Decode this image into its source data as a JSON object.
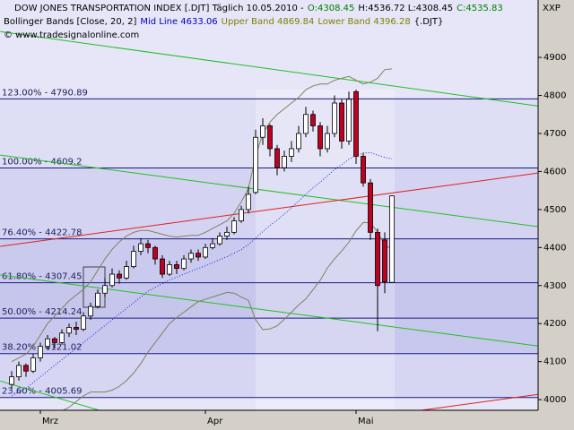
{
  "chart_data": {
    "type": "candlestick",
    "symbol": "XXP",
    "header": [
      [
        {
          "text": "DOW JONES TRANSPORTATION INDEX [.DJT]  Täglich 10.05.2010 -",
          "color": "#000000"
        },
        {
          "text": "O:4308.45",
          "color": "#008000"
        },
        {
          "text": "H:4536.72 L:4308.45",
          "color": "#000000"
        },
        {
          "text": "C:4535.83",
          "color": "#008000"
        }
      ],
      [
        {
          "text": "Bollinger Bands [Close, 20, 2]",
          "color": "#000000"
        },
        {
          "text": "Mid Line 4633.06",
          "color": "#0000c0"
        },
        {
          "text": "Upper Band 4869.84",
          "color": "#808000"
        },
        {
          "text": "Lower Band 4396.28",
          "color": "#808000"
        },
        {
          "text": "{.DJT}",
          "color": "#000000"
        }
      ],
      [
        {
          "text": "© www.tradesignalonline.com",
          "color": "#000000"
        }
      ]
    ],
    "categories": [
      null,
      null,
      null,
      null,
      "Mrz",
      null,
      null,
      null,
      null,
      null,
      null,
      null,
      null,
      null,
      null,
      null,
      null,
      null,
      null,
      null,
      null,
      null,
      null,
      null,
      null,
      null,
      null,
      "Apr",
      null,
      null,
      null,
      null,
      null,
      null,
      null,
      null,
      null,
      null,
      null,
      null,
      null,
      null,
      null,
      null,
      null,
      null,
      null,
      null,
      "Mai",
      null,
      null,
      null,
      null,
      null
    ],
    "open": [
      4040,
      4060,
      4090,
      4075,
      4110,
      4140,
      4160,
      4150,
      4175,
      4190,
      4185,
      4220,
      4245,
      4280,
      4300,
      4330,
      4320,
      4350,
      4390,
      4410,
      4400,
      4370,
      4330,
      4355,
      4345,
      4370,
      4385,
      4375,
      4400,
      4410,
      4430,
      4440,
      4470,
      4500,
      4545,
      4690,
      4720,
      4660,
      4610,
      4640,
      4660,
      4700,
      4750,
      4720,
      4660,
      4700,
      4780,
      4680,
      4810,
      4640,
      4570,
      4440,
      4420,
      4308.45
    ],
    "high": [
      4075,
      4100,
      4095,
      4120,
      4150,
      4170,
      4165,
      4185,
      4200,
      4205,
      4230,
      4255,
      4290,
      4320,
      4345,
      4340,
      4365,
      4405,
      4425,
      4420,
      4405,
      4380,
      4365,
      4365,
      4380,
      4395,
      4395,
      4410,
      4425,
      4440,
      4455,
      4480,
      4510,
      4560,
      4710,
      4740,
      4725,
      4670,
      4655,
      4680,
      4720,
      4770,
      4760,
      4730,
      4720,
      4800,
      4790,
      4810,
      4815,
      4650,
      4580,
      4450,
      4440,
      4536.72
    ],
    "low": [
      4030,
      4050,
      4060,
      4070,
      4100,
      4130,
      4135,
      4145,
      4165,
      4170,
      4180,
      4210,
      4240,
      4270,
      4295,
      4305,
      4315,
      4345,
      4380,
      4385,
      4355,
      4320,
      4325,
      4330,
      4340,
      4360,
      4365,
      4370,
      4395,
      4405,
      4420,
      4435,
      4465,
      4490,
      4540,
      4670,
      4640,
      4590,
      4600,
      4625,
      4650,
      4690,
      4705,
      4640,
      4650,
      4690,
      4660,
      4670,
      4620,
      4560,
      4420,
      4180,
      4280,
      4308.45
    ],
    "close": [
      4060,
      4090,
      4075,
      4110,
      4140,
      4160,
      4150,
      4175,
      4190,
      4185,
      4220,
      4245,
      4280,
      4300,
      4330,
      4320,
      4350,
      4390,
      4410,
      4400,
      4370,
      4330,
      4355,
      4345,
      4370,
      4385,
      4375,
      4400,
      4410,
      4430,
      4440,
      4470,
      4500,
      4540,
      4690,
      4720,
      4660,
      4610,
      4640,
      4660,
      4700,
      4750,
      4720,
      4660,
      4700,
      4780,
      4680,
      4790,
      4640,
      4570,
      4440,
      4300,
      4310,
      4535.83
    ],
    "up_color": "#ffffff",
    "down_color": "#c00020",
    "bands": [
      {
        "color": "#808060",
        "dash": false,
        "values": [
          4100,
          4110,
          4120,
          4140,
          4170,
          4200,
          4220,
          4240,
          4260,
          4275,
          4290,
          4310,
          4340,
          4370,
          4395,
          4415,
          4430,
          4440,
          4445,
          4445,
          4440,
          4435,
          4430,
          4428,
          4430,
          4432,
          4432,
          4440,
          4450,
          4460,
          4470,
          4490,
          4520,
          4555,
          4640,
          4700,
          4730,
          4750,
          4765,
          4780,
          4795,
          4815,
          4825,
          4830,
          4830,
          4840,
          4845,
          4850,
          4840,
          4830,
          4835,
          4845,
          4868,
          4869.84
        ]
      },
      {
        "color": "#2020e0",
        "dash": true,
        "values": [
          4010,
          4020,
          4030,
          4045,
          4060,
          4075,
          4090,
          4105,
          4120,
          4135,
          4150,
          4165,
          4180,
          4195,
          4210,
          4225,
          4240,
          4255,
          4270,
          4285,
          4295,
          4305,
          4315,
          4322,
          4330,
          4338,
          4345,
          4352,
          4360,
          4368,
          4376,
          4385,
          4395,
          4408,
          4425,
          4442,
          4458,
          4472,
          4488,
          4505,
          4522,
          4540,
          4557,
          4572,
          4588,
          4605,
          4618,
          4632,
          4642,
          4648,
          4650,
          4643,
          4637,
          4633.06
        ]
      },
      {
        "color": "#808060",
        "dash": false,
        "values": [
          3920,
          3930,
          3940,
          3950,
          3950,
          3950,
          3960,
          3970,
          3980,
          3995,
          4010,
          4020,
          4020,
          4020,
          4025,
          4035,
          4050,
          4070,
          4095,
          4125,
          4150,
          4175,
          4200,
          4216,
          4230,
          4244,
          4258,
          4264,
          4270,
          4276,
          4282,
          4280,
          4270,
          4261,
          4210,
          4184,
          4186,
          4194,
          4211,
          4230,
          4249,
          4265,
          4289,
          4314,
          4346,
          4370,
          4391,
          4414,
          4444,
          4466,
          4465,
          4441,
          4406,
          4396.28
        ]
      }
    ],
    "trendlines": [
      {
        "color": "#20c020",
        "x": [
          -1.6,
          73.4
        ],
        "values": [
          4968,
          4772
        ]
      },
      {
        "color": "#20c020",
        "x": [
          -1.6,
          73.4
        ],
        "values": [
          4643,
          4455
        ]
      },
      {
        "color": "#20c020",
        "x": [
          -1.6,
          73.4
        ],
        "values": [
          4328,
          4141
        ]
      },
      {
        "color": "#20c020",
        "x": [
          -1.6,
          12.2
        ],
        "values": [
          4049,
          3972
        ]
      },
      {
        "color": "#e02020",
        "x": [
          -1.6,
          73.4
        ],
        "values": [
          4403,
          4596
        ]
      },
      {
        "color": "#e02020",
        "x": [
          57.1,
          73.4
        ],
        "values": [
          3972,
          4014
        ]
      }
    ],
    "fib_levels": [
      {
        "value": 4790.89,
        "label": "123.00% - 4790.89"
      },
      {
        "value": 4609.2,
        "label": "100.00% - 4609.2"
      },
      {
        "value": 4422.78,
        "label": "76.40% - 4422.78"
      },
      {
        "value": 4307.45,
        "label": "61.80% - 4307.45"
      },
      {
        "value": 4214.24,
        "label": "50.00% - 4214.24"
      },
      {
        "value": 4121.02,
        "label": "38.20% - 4121.02"
      },
      {
        "value": 4005.69,
        "label": "23.60% - 4005.69"
      }
    ],
    "fib_color": "#1a1a80",
    "ylim": [
      3972,
      5051
    ],
    "yticks": [
      4000,
      4100,
      4200,
      4300,
      4400,
      4500,
      4600,
      4700,
      4800,
      4900
    ]
  }
}
